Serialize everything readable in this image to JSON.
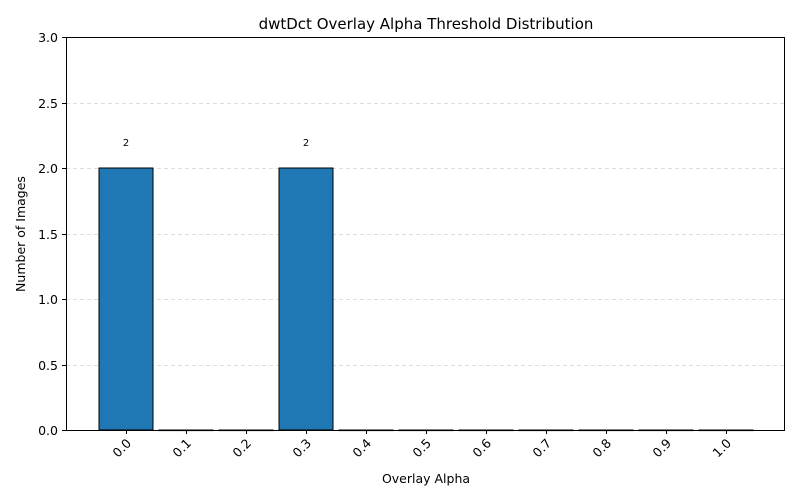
{
  "chart_data": {
    "type": "bar",
    "title": "dwtDct Overlay Alpha Threshold Distribution",
    "xlabel": "Overlay Alpha",
    "ylabel": "Number of Images",
    "categories": [
      "0.0",
      "0.1",
      "0.2",
      "0.3",
      "0.4",
      "0.5",
      "0.6",
      "0.7",
      "0.8",
      "0.9",
      "1.0"
    ],
    "values": [
      2,
      0,
      0,
      2,
      0,
      0,
      0,
      0,
      0,
      0,
      0
    ],
    "data_labels": [
      "2",
      "",
      "",
      "2",
      "",
      "",
      "",
      "",
      "",
      "",
      ""
    ],
    "ylim": [
      0,
      3
    ],
    "yticks": [
      0.0,
      0.5,
      1.0,
      1.5,
      2.0,
      2.5,
      3.0
    ],
    "ytick_labels": [
      "0.0",
      "0.5",
      "1.0",
      "1.5",
      "2.0",
      "2.5",
      "3.0"
    ],
    "grid": "y-axis dashed",
    "legend": "none",
    "bar_color": "#1f77b4",
    "bar_edge_color": "#000000",
    "grid_color": "#dddddd"
  }
}
